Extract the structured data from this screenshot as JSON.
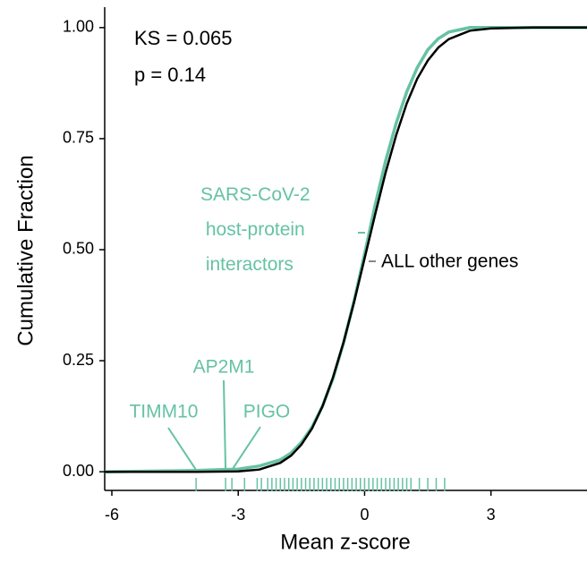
{
  "chart_data": {
    "type": "line",
    "xlabel": "Mean z-score",
    "ylabel": "Cumulative Fraction",
    "annotations": [
      "KS = 0.065",
      "p = 0.14"
    ],
    "xlim": [
      -6.17,
      5.28
    ],
    "ylim": [
      -0.042,
      1.046
    ],
    "xticks": [
      -6,
      -3,
      0,
      3
    ],
    "yticks": [
      {
        "value": 0,
        "label": "0.00"
      },
      {
        "value": 0.25,
        "label": "0.25"
      },
      {
        "value": 0.5,
        "label": "0.50"
      },
      {
        "value": 0.75,
        "label": "0.75"
      },
      {
        "value": 1,
        "label": "1.00"
      }
    ],
    "series": [
      {
        "name": "SARS-CoV-2 host-protein interactors",
        "color": "#66c2a5",
        "x": [
          -6.17,
          -4,
          -3,
          -2.5,
          -2,
          -1.75,
          -1.5,
          -1.25,
          -1,
          -0.75,
          -0.5,
          -0.25,
          0,
          0.25,
          0.5,
          0.75,
          1,
          1.25,
          1.5,
          1.75,
          2,
          2.5,
          3,
          4,
          5.28
        ],
        "values": [
          0,
          0.003,
          0.006,
          0.013,
          0.027,
          0.042,
          0.066,
          0.1,
          0.148,
          0.21,
          0.29,
          0.385,
          0.49,
          0.6,
          0.7,
          0.785,
          0.855,
          0.91,
          0.95,
          0.975,
          0.99,
          1,
          1,
          1,
          1
        ],
        "rug": [
          -4.0,
          -3.3,
          -3.15,
          -2.85,
          -2.55,
          -2.45,
          -2.3,
          -2.2,
          -2.1,
          -2.0,
          -1.9,
          -1.8,
          -1.7,
          -1.6,
          -1.5,
          -1.4,
          -1.3,
          -1.2,
          -1.1,
          -1.0,
          -0.9,
          -0.8,
          -0.7,
          -0.6,
          -0.5,
          -0.4,
          -0.3,
          -0.2,
          -0.1,
          0,
          0.1,
          0.2,
          0.3,
          0.4,
          0.5,
          0.6,
          0.7,
          0.8,
          0.9,
          1.0,
          1.1,
          1.3,
          1.5,
          1.7,
          1.9
        ],
        "genes": [
          {
            "text": "TIMM10",
            "x": -4.0
          },
          {
            "text": "AP2M1",
            "x": -3.3
          },
          {
            "text": "PIGO",
            "x": -3.15
          }
        ]
      },
      {
        "name": "ALL other genes",
        "color": "#000000",
        "x": [
          -6.17,
          -4,
          -3,
          -2.5,
          -2,
          -1.75,
          -1.5,
          -1.25,
          -1,
          -0.75,
          -0.5,
          -0.25,
          0,
          0.25,
          0.5,
          0.75,
          1,
          1.25,
          1.5,
          1.75,
          2,
          2.5,
          3,
          4,
          5.28
        ],
        "values": [
          0,
          0,
          0.001,
          0.005,
          0.02,
          0.036,
          0.061,
          0.097,
          0.147,
          0.212,
          0.291,
          0.382,
          0.48,
          0.579,
          0.674,
          0.758,
          0.829,
          0.885,
          0.926,
          0.955,
          0.974,
          0.993,
          0.998,
          1,
          1
        ]
      }
    ]
  }
}
